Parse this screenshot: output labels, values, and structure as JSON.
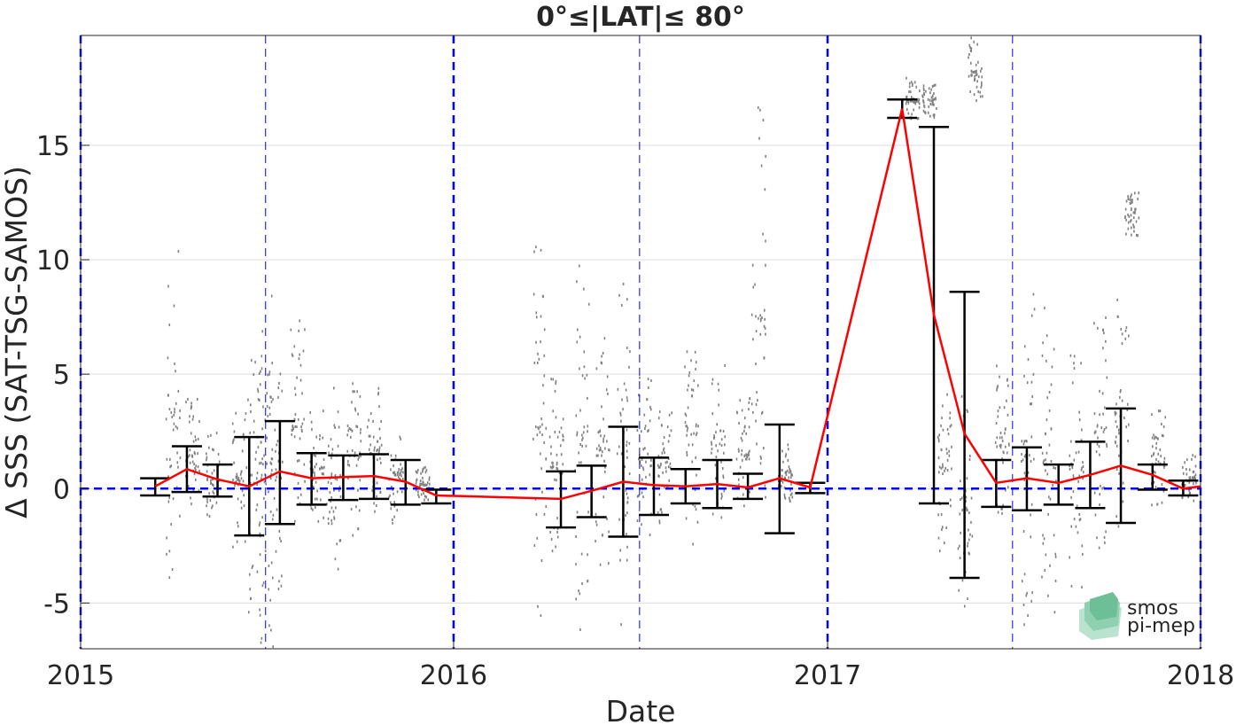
{
  "chart_data": {
    "type": "scatter",
    "title": "0°≤|LAT|≤ 80°",
    "xlabel": "Date",
    "ylabel": "Δ SSS (SAT-TSG-SAMOS)",
    "x_ticks": [
      "2015",
      "2016",
      "2017",
      "2018"
    ],
    "y_ticks": [
      -5,
      0,
      5,
      10,
      15
    ],
    "xlim": [
      "2015-01-01",
      "2018-01-01"
    ],
    "ylim": [
      -7.0,
      19.8
    ],
    "grid": "horizontal",
    "reference_line": {
      "y": 0,
      "color": "#0000ff",
      "style": "dashed"
    },
    "year_lines": [
      "2015-01-01",
      "2016-01-01",
      "2017-01-01",
      "2018-01-01"
    ],
    "midyear_lines": [
      "2015-07-01",
      "2016-07-01",
      "2017-07-01"
    ],
    "colors": {
      "points": "#808080",
      "mean": "#ff0000",
      "errorbar": "#000000",
      "reference": "#0000ff"
    },
    "series": [
      {
        "type": "line",
        "values": [
          {
            "x": "2015-03-15",
            "y": 0.1
          },
          {
            "x": "2015-04-15",
            "y": 0.85
          },
          {
            "x": "2015-05-15",
            "y": 0.4
          },
          {
            "x": "2015-06-15",
            "y": 0.1
          },
          {
            "x": "2015-07-15",
            "y": 0.75
          },
          {
            "x": "2015-08-15",
            "y": 0.45
          },
          {
            "x": "2015-09-15",
            "y": 0.5
          },
          {
            "x": "2015-10-15",
            "y": 0.55
          },
          {
            "x": "2015-11-15",
            "y": 0.3
          },
          {
            "x": "2015-12-15",
            "y": -0.3
          },
          {
            "x": "2016-04-15",
            "y": -0.45
          },
          {
            "x": "2016-05-15",
            "y": -0.1
          },
          {
            "x": "2016-06-15",
            "y": 0.3
          },
          {
            "x": "2016-07-15",
            "y": 0.15
          },
          {
            "x": "2016-08-15",
            "y": 0.1
          },
          {
            "x": "2016-09-15",
            "y": 0.2
          },
          {
            "x": "2016-10-15",
            "y": 0.05
          },
          {
            "x": "2016-11-15",
            "y": 0.45
          },
          {
            "x": "2016-12-15",
            "y": 0.05
          },
          {
            "x": "2017-03-15",
            "y": 16.6
          },
          {
            "x": "2017-04-15",
            "y": 7.6
          },
          {
            "x": "2017-05-15",
            "y": 2.4
          },
          {
            "x": "2017-06-15",
            "y": 0.25
          },
          {
            "x": "2017-07-15",
            "y": 0.45
          },
          {
            "x": "2017-08-15",
            "y": 0.25
          },
          {
            "x": "2017-09-15",
            "y": 0.6
          },
          {
            "x": "2017-10-15",
            "y": 1.0
          },
          {
            "x": "2017-11-15",
            "y": 0.6
          },
          {
            "x": "2017-12-15",
            "y": 0.0
          },
          {
            "x": "2018-01-01",
            "y": 0.1
          }
        ]
      },
      {
        "type": "errorbar",
        "values": [
          {
            "x": "2015-03-15",
            "low": -0.3,
            "high": 0.45
          },
          {
            "x": "2015-04-15",
            "low": -0.15,
            "high": 1.85
          },
          {
            "x": "2015-05-15",
            "low": -0.35,
            "high": 1.05
          },
          {
            "x": "2015-06-15",
            "low": -2.05,
            "high": 2.25
          },
          {
            "x": "2015-07-15",
            "low": -1.55,
            "high": 2.95
          },
          {
            "x": "2015-08-15",
            "low": -0.7,
            "high": 1.55
          },
          {
            "x": "2015-09-15",
            "low": -0.5,
            "high": 1.45
          },
          {
            "x": "2015-10-15",
            "low": -0.45,
            "high": 1.5
          },
          {
            "x": "2015-11-15",
            "low": -0.7,
            "high": 1.25
          },
          {
            "x": "2015-12-15",
            "low": -0.65,
            "high": -0.05
          },
          {
            "x": "2016-04-15",
            "low": -1.7,
            "high": 0.75
          },
          {
            "x": "2016-05-15",
            "low": -1.25,
            "high": 1.0
          },
          {
            "x": "2016-06-15",
            "low": -2.1,
            "high": 2.7
          },
          {
            "x": "2016-07-15",
            "low": -1.15,
            "high": 1.35
          },
          {
            "x": "2016-08-15",
            "low": -0.65,
            "high": 0.85
          },
          {
            "x": "2016-09-15",
            "low": -0.85,
            "high": 1.25
          },
          {
            "x": "2016-10-15",
            "low": -0.45,
            "high": 0.65
          },
          {
            "x": "2016-11-15",
            "low": -1.95,
            "high": 2.8
          },
          {
            "x": "2016-12-15",
            "low": -0.2,
            "high": 0.25
          },
          {
            "x": "2017-03-15",
            "low": 16.2,
            "high": 17.0
          },
          {
            "x": "2017-04-15",
            "low": -0.65,
            "high": 15.8
          },
          {
            "x": "2017-05-15",
            "low": -3.9,
            "high": 8.6
          },
          {
            "x": "2017-06-15",
            "low": -0.8,
            "high": 1.25
          },
          {
            "x": "2017-07-15",
            "low": -0.95,
            "high": 1.8
          },
          {
            "x": "2017-08-15",
            "low": -0.7,
            "high": 1.05
          },
          {
            "x": "2017-09-15",
            "low": -0.85,
            "high": 2.05
          },
          {
            "x": "2017-10-15",
            "low": -1.5,
            "high": 3.5
          },
          {
            "x": "2017-11-15",
            "low": -0.05,
            "high": 1.05
          },
          {
            "x": "2017-12-15",
            "low": -0.3,
            "high": 0.35
          }
        ]
      },
      {
        "type": "scatter_ranges",
        "values": [
          {
            "x": "2015-04-01",
            "low": -4.0,
            "high": 10.8
          },
          {
            "x": "2015-04-20",
            "low": -1.0,
            "high": 4.0
          },
          {
            "x": "2015-05-10",
            "low": -1.5,
            "high": 2.5
          },
          {
            "x": "2015-06-05",
            "low": -2.5,
            "high": 3.5
          },
          {
            "x": "2015-06-20",
            "low": -5.5,
            "high": 6.5
          },
          {
            "x": "2015-07-01",
            "low": -7.0,
            "high": 9.3
          },
          {
            "x": "2015-07-10",
            "low": -4.5,
            "high": 5.8
          },
          {
            "x": "2015-08-01",
            "low": -2.0,
            "high": 7.5
          },
          {
            "x": "2015-08-20",
            "low": -1.5,
            "high": 3.5
          },
          {
            "x": "2015-09-05",
            "low": -3.5,
            "high": 4.5
          },
          {
            "x": "2015-09-25",
            "low": -2.0,
            "high": 5.0
          },
          {
            "x": "2015-10-15",
            "low": -1.0,
            "high": 4.5
          },
          {
            "x": "2015-11-05",
            "low": -1.5,
            "high": 3.0
          },
          {
            "x": "2015-12-01",
            "low": -0.5,
            "high": 1.0
          },
          {
            "x": "2016-03-25",
            "low": -5.5,
            "high": 11.0
          },
          {
            "x": "2016-04-10",
            "low": -3.0,
            "high": 5.0
          },
          {
            "x": "2016-05-05",
            "low": -6.5,
            "high": 10.5
          },
          {
            "x": "2016-05-25",
            "low": -3.5,
            "high": 7.0
          },
          {
            "x": "2016-06-15",
            "low": -6.3,
            "high": 10.3
          },
          {
            "x": "2016-07-05",
            "low": -2.5,
            "high": 5.0
          },
          {
            "x": "2016-07-25",
            "low": -1.5,
            "high": 3.5
          },
          {
            "x": "2016-08-20",
            "low": -2.5,
            "high": 7.5
          },
          {
            "x": "2016-09-15",
            "low": -1.5,
            "high": 5.5
          },
          {
            "x": "2016-10-10",
            "low": -1.0,
            "high": 4.0
          },
          {
            "x": "2016-10-25",
            "low": -2.0,
            "high": 16.8
          },
          {
            "x": "2016-11-20",
            "low": -0.5,
            "high": 2.0
          },
          {
            "x": "2017-03-25",
            "low": 16.0,
            "high": 18.0
          },
          {
            "x": "2017-04-10",
            "low": 16.2,
            "high": 17.8
          },
          {
            "x": "2017-04-25",
            "low": -3.0,
            "high": 5.0
          },
          {
            "x": "2017-05-15",
            "low": -5.5,
            "high": 4.5
          },
          {
            "x": "2017-05-25",
            "low": 16.7,
            "high": 19.8
          },
          {
            "x": "2017-06-20",
            "low": -1.5,
            "high": 5.5
          },
          {
            "x": "2017-07-15",
            "low": -6.0,
            "high": 9.0
          },
          {
            "x": "2017-08-05",
            "low": -6.0,
            "high": 8.0
          },
          {
            "x": "2017-09-01",
            "low": -4.5,
            "high": 6.5
          },
          {
            "x": "2017-09-25",
            "low": -3.0,
            "high": 8.0
          },
          {
            "x": "2017-10-15",
            "low": -2.0,
            "high": 8.5
          },
          {
            "x": "2017-10-25",
            "low": 11.0,
            "high": 13.3
          },
          {
            "x": "2017-11-20",
            "low": -1.0,
            "high": 3.5
          },
          {
            "x": "2017-12-20",
            "low": -0.5,
            "high": 1.6
          }
        ]
      }
    ]
  },
  "logo": {
    "line1": "smos",
    "line2": "pi-mep"
  }
}
